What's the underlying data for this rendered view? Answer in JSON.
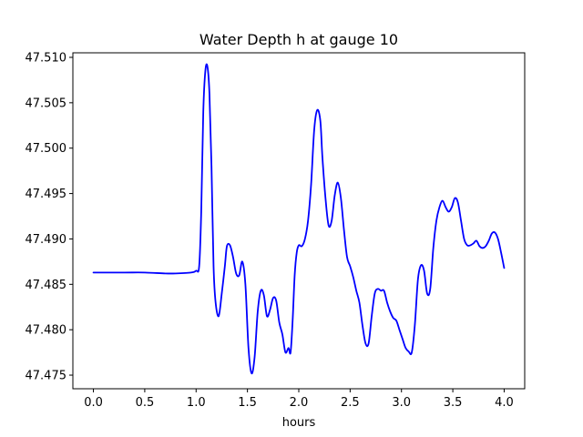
{
  "chart_data": {
    "type": "line",
    "title": "Water Depth h at gauge 10",
    "xlabel": "hours",
    "ylabel": "",
    "xlim": [
      -0.2,
      4.2
    ],
    "ylim": [
      47.4735,
      47.5105
    ],
    "xticks": [
      0.0,
      0.5,
      1.0,
      1.5,
      2.0,
      2.5,
      3.0,
      3.5,
      4.0
    ],
    "xtick_labels": [
      "0.0",
      "0.5",
      "1.0",
      "1.5",
      "2.0",
      "2.5",
      "3.0",
      "3.5",
      "4.0"
    ],
    "yticks": [
      47.475,
      47.48,
      47.485,
      47.49,
      47.495,
      47.5,
      47.505,
      47.51
    ],
    "ytick_labels": [
      "47.475",
      "47.480",
      "47.485",
      "47.490",
      "47.495",
      "47.500",
      "47.505",
      "47.510"
    ],
    "grid": false,
    "legend": "none",
    "series": [
      {
        "color": "#0000ff",
        "x": [
          0.0,
          0.3,
          0.5,
          0.7,
          0.8,
          0.95,
          1.0,
          1.03,
          1.05,
          1.07,
          1.09,
          1.11,
          1.13,
          1.15,
          1.17,
          1.19,
          1.22,
          1.25,
          1.28,
          1.3,
          1.33,
          1.36,
          1.39,
          1.42,
          1.45,
          1.48,
          1.51,
          1.54,
          1.57,
          1.6,
          1.63,
          1.66,
          1.69,
          1.72,
          1.75,
          1.78,
          1.81,
          1.84,
          1.87,
          1.9,
          1.92,
          1.94,
          1.96,
          1.98,
          2.0,
          2.03,
          2.06,
          2.09,
          2.12,
          2.15,
          2.18,
          2.21,
          2.23,
          2.26,
          2.29,
          2.32,
          2.35,
          2.38,
          2.41,
          2.44,
          2.47,
          2.5,
          2.53,
          2.56,
          2.59,
          2.62,
          2.65,
          2.68,
          2.71,
          2.74,
          2.77,
          2.8,
          2.83,
          2.86,
          2.89,
          2.92,
          2.95,
          2.98,
          3.01,
          3.04,
          3.07,
          3.1,
          3.13,
          3.16,
          3.19,
          3.22,
          3.25,
          3.28,
          3.31,
          3.34,
          3.37,
          3.4,
          3.43,
          3.46,
          3.49,
          3.52,
          3.55,
          3.58,
          3.61,
          3.64,
          3.67,
          3.7,
          3.73,
          3.76,
          3.79,
          3.82,
          3.85,
          3.88,
          3.91,
          3.94,
          3.97,
          4.0
        ],
        "y": [
          47.4863,
          47.4863,
          47.4863,
          47.4862,
          47.4862,
          47.4863,
          47.4865,
          47.487,
          47.493,
          47.504,
          47.5085,
          47.509,
          47.506,
          47.498,
          47.487,
          47.483,
          47.4815,
          47.484,
          47.487,
          47.4892,
          47.4893,
          47.488,
          47.4862,
          47.486,
          47.4875,
          47.485,
          47.478,
          47.4752,
          47.477,
          47.482,
          47.4843,
          47.4838,
          47.4815,
          47.4822,
          47.4835,
          47.4832,
          47.4808,
          47.4795,
          47.4775,
          47.478,
          47.4775,
          47.481,
          47.486,
          47.4885,
          47.4893,
          47.4892,
          47.49,
          47.492,
          47.496,
          47.502,
          47.5042,
          47.503,
          47.499,
          47.4945,
          47.4915,
          47.492,
          47.4948,
          47.4962,
          47.4945,
          47.491,
          47.488,
          47.487,
          47.4858,
          47.4843,
          47.483,
          47.4805,
          47.4785,
          47.4785,
          47.4815,
          47.484,
          47.4845,
          47.4843,
          47.4843,
          47.483,
          47.482,
          47.4813,
          47.481,
          47.48,
          47.479,
          47.478,
          47.4776,
          47.4775,
          47.4805,
          47.4855,
          47.4871,
          47.4865,
          47.484,
          47.4845,
          47.489,
          47.492,
          47.4935,
          47.4942,
          47.4935,
          47.493,
          47.4935,
          47.4945,
          47.494,
          47.492,
          47.49,
          47.4893,
          47.4893,
          47.4895,
          47.4898,
          47.4892,
          47.489,
          47.4892,
          47.4898,
          47.4906,
          47.4907,
          47.49,
          47.4885,
          47.4868
        ]
      }
    ]
  }
}
